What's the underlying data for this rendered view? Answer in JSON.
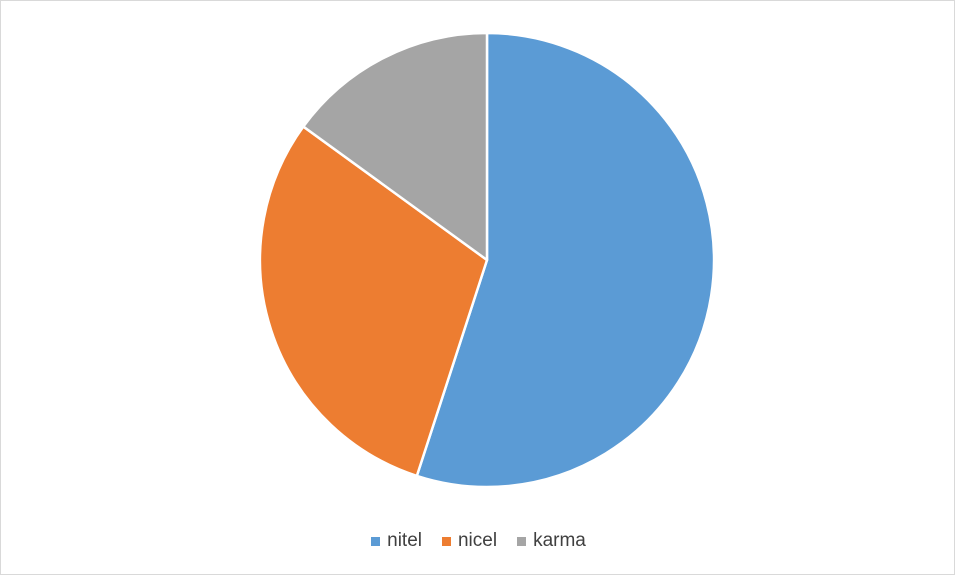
{
  "chart_data": {
    "type": "pie",
    "categories": [
      "nitel",
      "nicel",
      "karma"
    ],
    "values": [
      55,
      30,
      15
    ],
    "colors": [
      "#5b9bd5",
      "#ed7d31",
      "#a5a5a5"
    ],
    "start_angle_deg": 0,
    "direction": "clockwise",
    "legend_position": "bottom",
    "title": ""
  }
}
